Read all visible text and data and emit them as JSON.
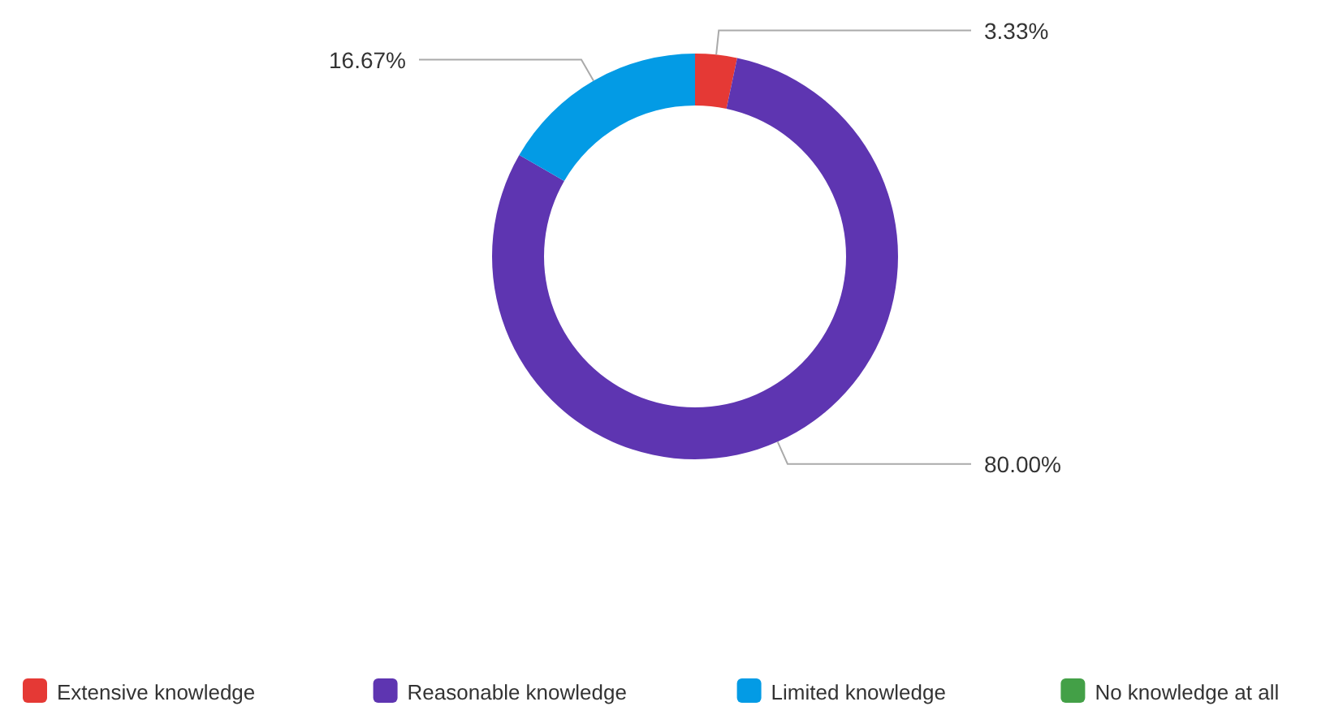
{
  "chart_data": {
    "type": "donut",
    "categories": [
      "Extensive knowledge",
      "Reasonable knowledge",
      "Limited knowledge",
      "No knowledge at all"
    ],
    "values": [
      3.33,
      80.0,
      16.67,
      0
    ],
    "colors": [
      "#e53935",
      "#5e35b1",
      "#039be5",
      "#43a047"
    ],
    "value_labels": [
      "3.33%",
      "80.00%",
      "16.67%",
      null
    ],
    "legend": "bottom"
  }
}
